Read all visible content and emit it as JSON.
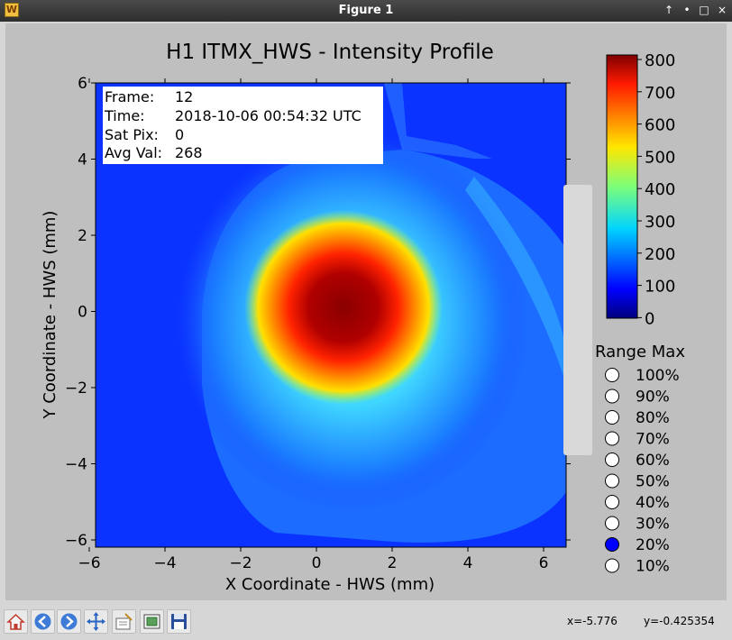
{
  "window": {
    "title": "Figure 1",
    "buttons": [
      "↑",
      "•",
      "□",
      "×"
    ]
  },
  "plot": {
    "title": "H1 ITMX_HWS - Intensity Profile",
    "xlabel": "X Coordinate - HWS (mm)",
    "ylabel": "Y Coordinate - HWS (mm)",
    "xticks": [
      "−6",
      "−4",
      "−2",
      "0",
      "2",
      "4",
      "6"
    ],
    "yticks": [
      "6",
      "4",
      "2",
      "0",
      "−2",
      "−4",
      "−6"
    ]
  },
  "info": {
    "frame_label": "Frame:",
    "frame_value": "12",
    "time_label": "Time:",
    "time_value": "2018-10-06 00:54:32 UTC",
    "satpix_label": "Sat Pix:",
    "satpix_value": "0",
    "avg_label": "Avg Val:",
    "avg_value": "268"
  },
  "colorbar": {
    "ticks": [
      "800",
      "700",
      "600",
      "500",
      "400",
      "300",
      "200",
      "100",
      "0"
    ]
  },
  "range_max": {
    "title": "Range Max",
    "options": [
      "100%",
      "90%",
      "80%",
      "70%",
      "60%",
      "50%",
      "40%",
      "30%",
      "20%",
      "10%"
    ],
    "selected": "20%"
  },
  "toolbar": {
    "icons": [
      "home-icon",
      "back-icon",
      "forward-icon",
      "pan-icon",
      "configure-subplots-icon",
      "edit-axis-icon",
      "save-icon"
    ],
    "x_coord": "x=-5.776",
    "y_coord": "y=-0.425354"
  },
  "colors": {
    "selected_radio": "#0000ff",
    "figure_bg": "#bfbfbf"
  }
}
